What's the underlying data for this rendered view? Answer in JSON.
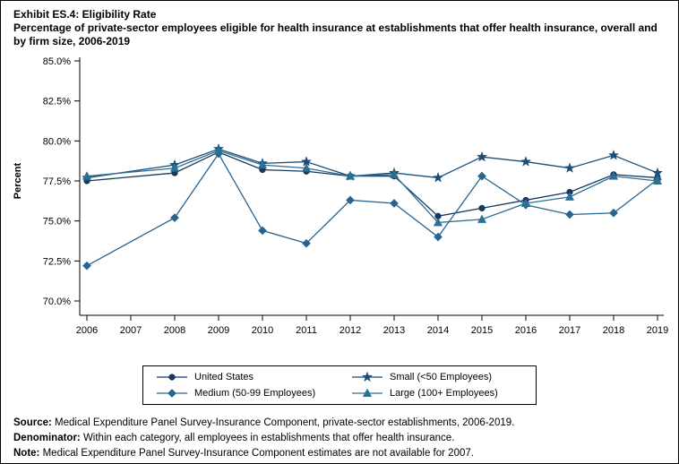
{
  "header": {
    "exhibit_title": "Exhibit ES.4: Eligibility Rate",
    "subtitle": "Percentage of private-sector employees eligible for health insurance at establishments that offer health insurance, overall and by firm size, 2006-2019"
  },
  "chart_data": {
    "type": "line",
    "title": "Exhibit ES.4: Eligibility Rate",
    "ylabel": "Percent",
    "ylim": [
      70,
      85
    ],
    "yticks": [
      70.0,
      72.5,
      75.0,
      77.5,
      80.0,
      82.5,
      85.0
    ],
    "ytick_labels": [
      "70.0%",
      "72.5%",
      "75.0%",
      "77.5%",
      "80.0%",
      "82.5%",
      "85.0%"
    ],
    "x_axis_years": [
      2006,
      2007,
      2008,
      2009,
      2010,
      2011,
      2012,
      2013,
      2014,
      2015,
      2016,
      2017,
      2018,
      2019
    ],
    "years": [
      2006,
      2008,
      2009,
      2010,
      2011,
      2012,
      2013,
      2014,
      2015,
      2016,
      2017,
      2018,
      2019
    ],
    "missing_years": [
      2007
    ],
    "grid": false,
    "legend_position": "bottom",
    "series": [
      {
        "name": "United States",
        "marker": "circle",
        "color": "#14395c",
        "values": [
          77.5,
          78.0,
          79.3,
          78.2,
          78.1,
          77.8,
          77.8,
          75.3,
          75.8,
          76.3,
          76.8,
          77.9,
          77.7
        ]
      },
      {
        "name": "Small (<50 Employees)",
        "marker": "star",
        "color": "#1b4d77",
        "values": [
          77.7,
          78.5,
          79.5,
          78.6,
          78.7,
          77.8,
          78.0,
          77.7,
          79.0,
          78.7,
          78.3,
          79.1,
          78.0
        ]
      },
      {
        "name": "Medium (50-99 Employees)",
        "marker": "diamond",
        "color": "#26658f",
        "values": [
          72.2,
          75.2,
          79.2,
          74.4,
          73.6,
          76.3,
          76.1,
          74.0,
          77.8,
          76.0,
          75.4,
          75.5,
          77.6
        ]
      },
      {
        "name": "Large (100+ Employees)",
        "marker": "triangle",
        "color": "#2d6f94",
        "values": [
          77.8,
          78.3,
          79.4,
          78.5,
          78.3,
          77.8,
          77.9,
          74.9,
          75.1,
          76.1,
          76.5,
          77.8,
          77.5
        ]
      }
    ]
  },
  "footer": {
    "source_label": "Source:",
    "source_text": "Medical Expenditure Panel Survey-Insurance Component, private-sector establishments, 2006-2019.",
    "denominator_label": "Denominator:",
    "denominator_text": "Within each category, all employees in establishments that offer health insurance.",
    "note_label": "Note:",
    "note_text": "Medical Expenditure Panel Survey-Insurance Component estimates are not available for 2007."
  }
}
